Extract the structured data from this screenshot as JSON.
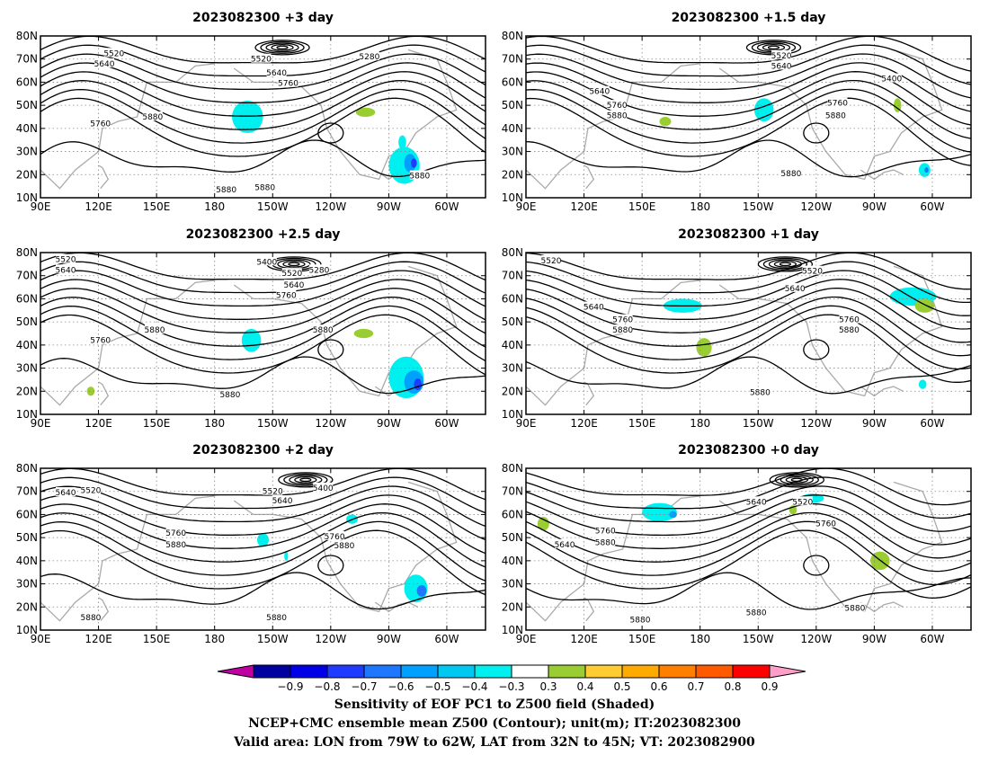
{
  "panels": [
    {
      "title": "2023082300 +3 day",
      "contour_labels": [
        {
          "text": "5520",
          "lon": 128,
          "lat": 72.5
        },
        {
          "text": "5640",
          "lon": 123,
          "lat": 68
        },
        {
          "text": "5520",
          "lon": 204,
          "lat": 70
        },
        {
          "text": "5280",
          "lon": 260,
          "lat": 71
        },
        {
          "text": "5640",
          "lon": 212,
          "lat": 64
        },
        {
          "text": "5760",
          "lon": 218,
          "lat": 59.5
        },
        {
          "text": "5760",
          "lon": 121,
          "lat": 42
        },
        {
          "text": "5880",
          "lon": 148,
          "lat": 45
        },
        {
          "text": "5880",
          "lon": 186,
          "lat": 13.5
        },
        {
          "text": "5880",
          "lon": 206,
          "lat": 14.5
        },
        {
          "text": "5880",
          "lon": 286,
          "lat": 19.5
        }
      ]
    },
    {
      "title": "2023082300 +1.5 day",
      "contour_labels": [
        {
          "text": "5520",
          "lon": 222,
          "lat": 71.5
        },
        {
          "text": "5640",
          "lon": 222,
          "lat": 67
        },
        {
          "text": "5400",
          "lon": 279,
          "lat": 61.5
        },
        {
          "text": "5640",
          "lon": 128,
          "lat": 56
        },
        {
          "text": "5760",
          "lon": 137,
          "lat": 50
        },
        {
          "text": "5880",
          "lon": 137,
          "lat": 45.5
        },
        {
          "text": "5760",
          "lon": 251,
          "lat": 51
        },
        {
          "text": "5880",
          "lon": 250,
          "lat": 45.5
        },
        {
          "text": "5880",
          "lon": 227,
          "lat": 20.5
        }
      ]
    },
    {
      "title": "2023082300 +2.5 day",
      "contour_labels": [
        {
          "text": "5520",
          "lon": 103,
          "lat": 77
        },
        {
          "text": "5640",
          "lon": 103,
          "lat": 72.5
        },
        {
          "text": "5400",
          "lon": 207,
          "lat": 76
        },
        {
          "text": "5520",
          "lon": 220,
          "lat": 71
        },
        {
          "text": "5280",
          "lon": 234,
          "lat": 72.5
        },
        {
          "text": "5640",
          "lon": 221,
          "lat": 66
        },
        {
          "text": "5760",
          "lon": 217,
          "lat": 61.5
        },
        {
          "text": "5760",
          "lon": 121,
          "lat": 42
        },
        {
          "text": "5880",
          "lon": 149,
          "lat": 46.5
        },
        {
          "text": "5880",
          "lon": 236,
          "lat": 46.5
        },
        {
          "text": "5880",
          "lon": 188,
          "lat": 18.5
        }
      ]
    },
    {
      "title": "2023082300 +1 day",
      "contour_labels": [
        {
          "text": "5520",
          "lon": 103,
          "lat": 76.5
        },
        {
          "text": "5520",
          "lon": 238,
          "lat": 72
        },
        {
          "text": "5640",
          "lon": 229,
          "lat": 64.5
        },
        {
          "text": "5640",
          "lon": 125,
          "lat": 56.5
        },
        {
          "text": "5760",
          "lon": 140,
          "lat": 51
        },
        {
          "text": "5880",
          "lon": 140,
          "lat": 46.5
        },
        {
          "text": "5760",
          "lon": 257,
          "lat": 51
        },
        {
          "text": "5880",
          "lon": 257,
          "lat": 46.5
        },
        {
          "text": "5880",
          "lon": 211,
          "lat": 19.5
        }
      ]
    },
    {
      "title": "2023082300 +2 day",
      "contour_labels": [
        {
          "text": "5640",
          "lon": 103,
          "lat": 69.5
        },
        {
          "text": "5520",
          "lon": 116,
          "lat": 70.5
        },
        {
          "text": "5520",
          "lon": 210,
          "lat": 70
        },
        {
          "text": "5400",
          "lon": 236,
          "lat": 71.5
        },
        {
          "text": "5640",
          "lon": 215,
          "lat": 66
        },
        {
          "text": "5760",
          "lon": 160,
          "lat": 52
        },
        {
          "text": "5880",
          "lon": 160,
          "lat": 47
        },
        {
          "text": "5760",
          "lon": 242,
          "lat": 50.5
        },
        {
          "text": "5880",
          "lon": 247,
          "lat": 46.5
        },
        {
          "text": "5880",
          "lon": 116,
          "lat": 15.5
        },
        {
          "text": "5880",
          "lon": 212,
          "lat": 15.5
        }
      ]
    },
    {
      "title": "2023082300 +0 day",
      "contour_labels": [
        {
          "text": "5640",
          "lon": 209,
          "lat": 65.5
        },
        {
          "text": "5520",
          "lon": 233,
          "lat": 65.5
        },
        {
          "text": "5760",
          "lon": 245,
          "lat": 56
        },
        {
          "text": "5760",
          "lon": 131,
          "lat": 53
        },
        {
          "text": "5880",
          "lon": 131,
          "lat": 48
        },
        {
          "text": "5640",
          "lon": 110,
          "lat": 47
        },
        {
          "text": "5880",
          "lon": 149,
          "lat": 14.5
        },
        {
          "text": "5880",
          "lon": 209,
          "lat": 17.5
        },
        {
          "text": "5880",
          "lon": 260,
          "lat": 19.5
        }
      ]
    }
  ],
  "axes": {
    "x_ticks": [
      {
        "lon": 90,
        "label": "90E"
      },
      {
        "lon": 120,
        "label": "120E"
      },
      {
        "lon": 150,
        "label": "150E"
      },
      {
        "lon": 180,
        "label": "180"
      },
      {
        "lon": 210,
        "label": "150W"
      },
      {
        "lon": 240,
        "label": "120W"
      },
      {
        "lon": 270,
        "label": "90W"
      },
      {
        "lon": 300,
        "label": "60W"
      }
    ],
    "y_ticks": [
      {
        "lat": 10,
        "label": "10N"
      },
      {
        "lat": 20,
        "label": "20N"
      },
      {
        "lat": 30,
        "label": "30N"
      },
      {
        "lat": 40,
        "label": "40N"
      },
      {
        "lat": 50,
        "label": "50N"
      },
      {
        "lat": 60,
        "label": "60N"
      },
      {
        "lat": 70,
        "label": "70N"
      },
      {
        "lat": 80,
        "label": "80N"
      }
    ],
    "lon_range": [
      90,
      320
    ],
    "lat_range": [
      10,
      80
    ]
  },
  "colorbar": {
    "colors": [
      "#c000a0",
      "#0000a0",
      "#0000e6",
      "#1e3cff",
      "#1e78ff",
      "#00a0ff",
      "#00c8f0",
      "#00f0f0",
      "#ffffff",
      "#9acd32",
      "#ffcc33",
      "#ffaa00",
      "#ff7f00",
      "#ff5a00",
      "#ff0000",
      "#ff9ec8"
    ],
    "labels": [
      "−0.9",
      "−0.8",
      "−0.7",
      "−0.6",
      "−0.5",
      "−0.4",
      "−0.3",
      "0.3",
      "0.4",
      "0.5",
      "0.6",
      "0.7",
      "0.8",
      "0.9"
    ],
    "contour_color": "#000000",
    "land_color": "#aaaaaa"
  },
  "caption": {
    "line1": "Sensitivity of EOF PC1 to Z500 field (Shaded)",
    "line2": "NCEP+CMC ensemble mean Z500 (Contour); unit(m); IT:2023082300",
    "line3": "Valid area: LON from 79W to 62W, LAT from 32N to 45N; VT: 2023082900"
  }
}
